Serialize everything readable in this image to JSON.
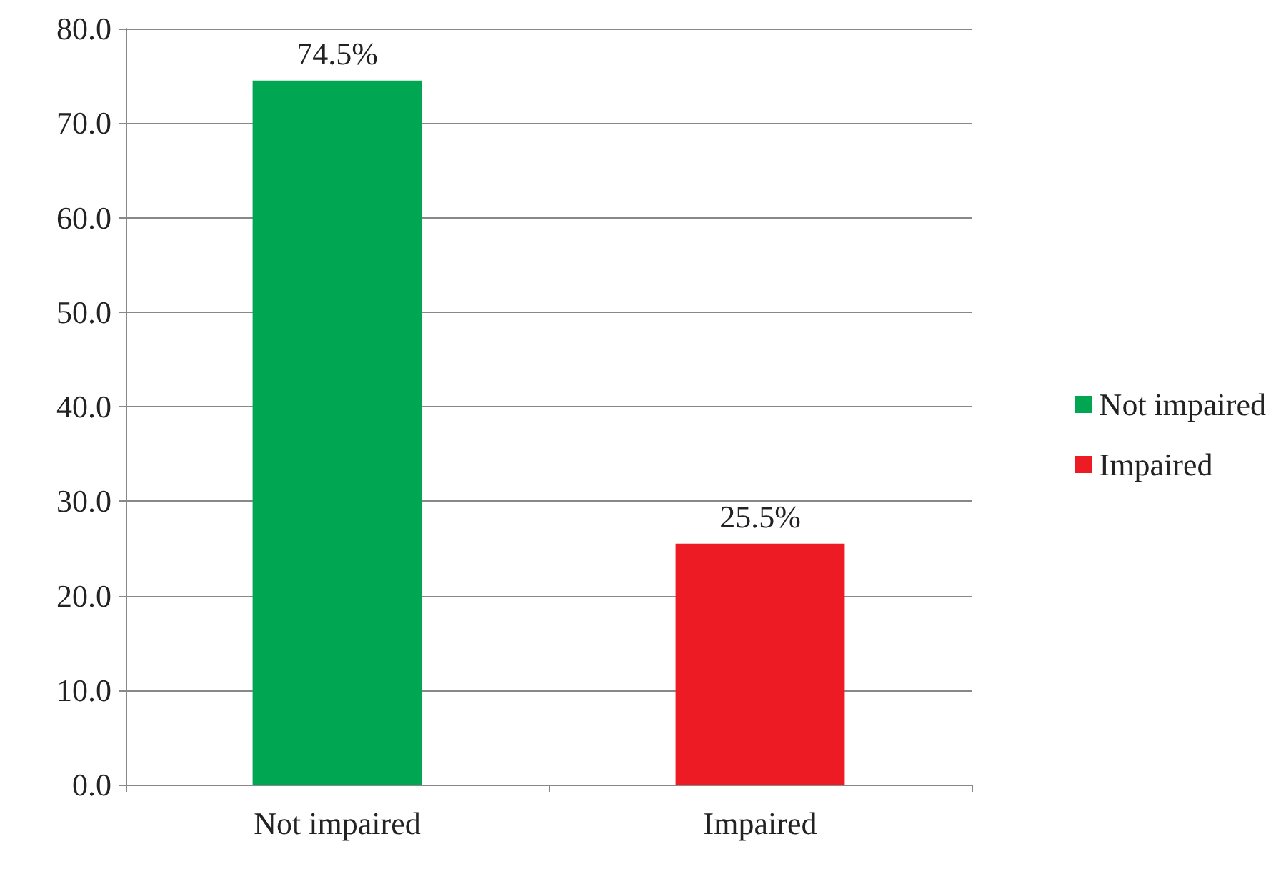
{
  "chart_data": {
    "type": "bar",
    "categories": [
      "Not impaired",
      "Impaired"
    ],
    "series": [
      {
        "name": "Not impaired",
        "color": "#00a651",
        "values": [
          74.5,
          null
        ],
        "value_labels": [
          "74.5%",
          null
        ]
      },
      {
        "name": "Impaired",
        "color": "#ed1c24",
        "values": [
          null,
          25.5
        ],
        "value_labels": [
          null,
          "25.5%"
        ]
      }
    ],
    "stacked": true,
    "ylim": [
      0,
      80
    ],
    "yticks": [
      {
        "value": 0,
        "label": "0.0"
      },
      {
        "value": 10,
        "label": "10.0"
      },
      {
        "value": 20,
        "label": "20.0"
      },
      {
        "value": 30,
        "label": "30.0"
      },
      {
        "value": 40,
        "label": "40.0"
      },
      {
        "value": 50,
        "label": "50.0"
      },
      {
        "value": 60,
        "label": "60.0"
      },
      {
        "value": 70,
        "label": "70.0"
      },
      {
        "value": 80,
        "label": "80.0"
      }
    ],
    "grid": "y",
    "legend": "right"
  }
}
